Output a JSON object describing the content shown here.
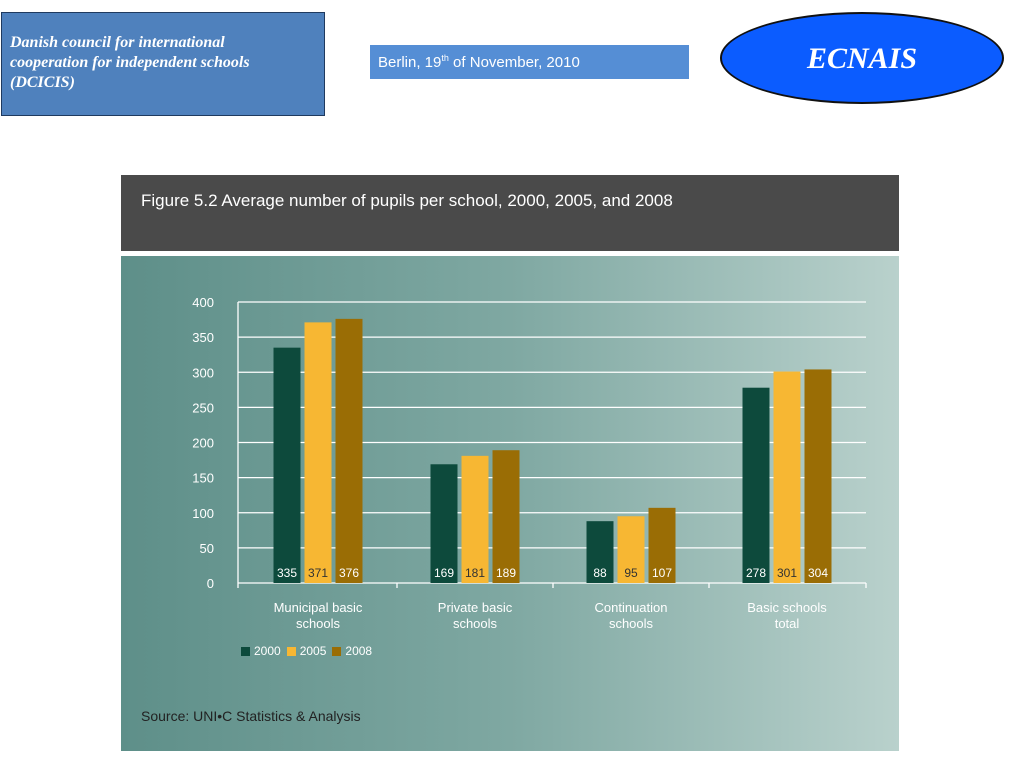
{
  "header": {
    "org_line1": "Danish council for international",
    "org_line2": "cooperation for independent schools",
    "org_line3": "(DCICIS)",
    "date_prefix": "Berlin, 19",
    "date_sup": "th",
    "date_suffix": " of November, 2010",
    "logo_text": "ECNAIS"
  },
  "figure": {
    "title": "Figure 5.2  Average number of pupils per school, 2000, 2005, and 2008",
    "source": "Source: UNI•C Statistics & Analysis"
  },
  "chart_data": {
    "type": "bar",
    "categories": [
      [
        "Municipal basic",
        "schools"
      ],
      [
        "Private basic",
        "schools"
      ],
      [
        "Continuation",
        "schools"
      ],
      [
        "Basic schools",
        "total"
      ]
    ],
    "series": [
      {
        "name": "2000",
        "color": "#0d4a3c",
        "values": [
          335,
          169,
          88,
          278
        ]
      },
      {
        "name": "2005",
        "color": "#f7b733",
        "values": [
          371,
          181,
          95,
          301
        ]
      },
      {
        "name": "2008",
        "color": "#9a6d05",
        "values": [
          376,
          189,
          107,
          304
        ]
      }
    ],
    "yticks": [
      0,
      50,
      100,
      150,
      200,
      250,
      300,
      350,
      400
    ],
    "ylim": [
      0,
      400
    ],
    "grid": true,
    "legend_position": "bottom-left",
    "value_labels": "inside-bottom"
  }
}
